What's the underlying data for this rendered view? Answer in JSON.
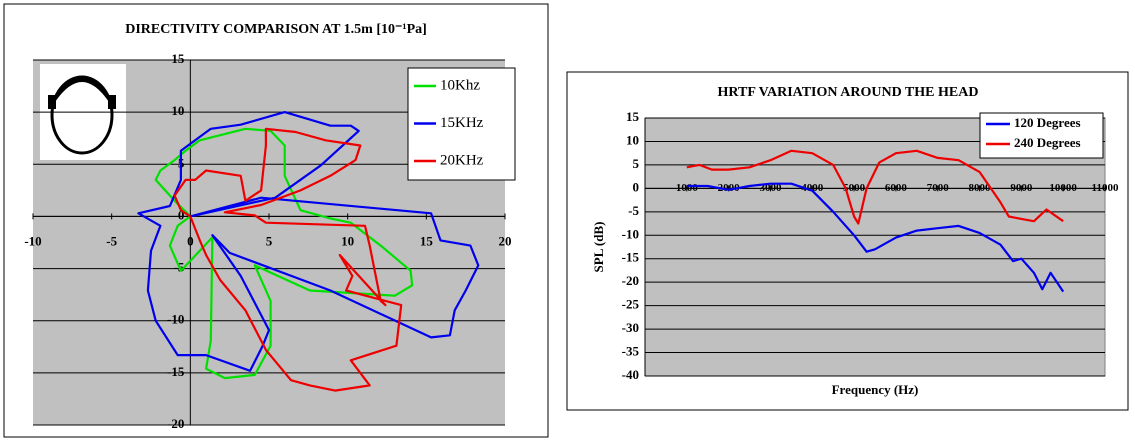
{
  "chart_data": [
    {
      "type": "line",
      "title": "DIRECTIVITY COMPARISON AT 1.5m [10⁻¹Pa]",
      "xlim": [
        -10,
        20
      ],
      "xticks": [
        -10,
        -5,
        0,
        5,
        10,
        15,
        20
      ],
      "ylim": [
        -20,
        15
      ],
      "yticks": [
        -20,
        -15,
        -10,
        -5,
        0,
        5,
        10,
        15
      ],
      "grid": true,
      "legend": "top-right",
      "series": [
        {
          "name": "10Khz",
          "color": "#00e000",
          "x": [
            0,
            -1,
            -2.2,
            -1.9,
            -1,
            -0.3,
            0.6,
            3.5,
            5.1,
            6,
            6,
            7,
            8.9,
            10.2,
            12.1,
            14,
            14.1,
            13,
            7.6,
            4.1,
            5.1,
            5.1,
            4.1,
            2.2,
            1,
            1.3,
            1.4,
            0.6,
            -0.6,
            -1.3,
            -0.8,
            0
          ],
          "values": [
            0,
            1.5,
            3.5,
            4.4,
            5.4,
            6.3,
            7.3,
            8.4,
            8.2,
            6.8,
            3.9,
            0.6,
            -0.2,
            -0.6,
            -2.8,
            -5.2,
            -6.6,
            -7.6,
            -7.1,
            -4.7,
            -8.1,
            -12.4,
            -15.2,
            -15.5,
            -14.6,
            -11.9,
            -2,
            -3.3,
            -5.2,
            -2.8,
            -0.9,
            0
          ]
        },
        {
          "name": "15KHz",
          "color": "#0000ee",
          "x": [
            0,
            4.5,
            15.3,
            15.9,
            17.8,
            18.3,
            17.5,
            16.8,
            16.5,
            15.3,
            8.9,
            2.5,
            1.4,
            3.2,
            5,
            4.6,
            3.8,
            1,
            -0.8,
            -2.2,
            -2.7,
            -2.5,
            -1.9,
            -3.3,
            -1.3,
            -0.6,
            -0.6,
            1.3,
            3.2,
            6,
            8.9,
            10.2,
            10.7,
            8.3,
            5.4,
            0
          ],
          "values": [
            0,
            1.8,
            0.3,
            -2.3,
            -2.8,
            -4.7,
            -7.1,
            -9,
            -11.4,
            -11.6,
            -7.1,
            -3.5,
            -1.8,
            -5.7,
            -10.9,
            -12.4,
            -14.8,
            -13.3,
            -13.3,
            -10,
            -7.1,
            -3.3,
            -0.9,
            0.3,
            1,
            3.5,
            6.3,
            8.4,
            8.8,
            10,
            8.7,
            8.7,
            8.2,
            4.9,
            1.8,
            0
          ]
        },
        {
          "name": "20KHz",
          "color": "#ee0000",
          "x": [
            0,
            -0.6,
            -1,
            -0.3,
            0.3,
            1,
            3.2,
            3.5,
            4.5,
            4.8,
            4.8,
            6.7,
            8.6,
            10.8,
            10.5,
            8.9,
            7,
            4.5,
            2.2,
            4.1,
            4.8,
            11.1,
            11.4,
            12.1,
            12.4,
            9.5,
            10.3,
            9.9,
            13.4,
            13.1,
            10.2,
            11.4,
            9.2,
            7.6,
            6.4,
            4.8,
            3.5,
            1.9,
            1,
            0.6,
            0
          ],
          "values": [
            0,
            0.6,
            2,
            3.5,
            3.5,
            4.4,
            3.9,
            1.5,
            2.5,
            6.8,
            8.4,
            8.1,
            7.3,
            6.8,
            5.4,
            3.9,
            2.5,
            1.1,
            0.4,
            0.1,
            -0.6,
            -0.9,
            -2.8,
            -8.1,
            -8.5,
            -3.7,
            -5.7,
            -7.1,
            -8.5,
            -12.4,
            -13.8,
            -16.2,
            -16.7,
            -16.2,
            -15.7,
            -12.8,
            -9,
            -6.1,
            -3.7,
            -2.3,
            0
          ]
        }
      ]
    },
    {
      "type": "line",
      "title": "HRTF VARIATION AROUND THE HEAD",
      "x_label": "Frequency (Hz)",
      "y_label": "SPL (dB)",
      "xlim": [
        0,
        11000
      ],
      "xticks": [
        1000,
        2000,
        3000,
        4000,
        5000,
        6000,
        7000,
        8000,
        9000,
        10000,
        11000
      ],
      "ylim": [
        -40,
        15
      ],
      "yticks": [
        -40,
        -35,
        -30,
        -25,
        -20,
        -15,
        -10,
        -5,
        0,
        5,
        10,
        15
      ],
      "grid": true,
      "legend": "top-right",
      "series": [
        {
          "name": "120 Degrees",
          "color": "#0000ee",
          "x": [
            1000,
            1500,
            2000,
            2500,
            3000,
            3500,
            4000,
            4500,
            5000,
            5300,
            5500,
            6000,
            6500,
            7000,
            7500,
            8000,
            8500,
            8800,
            9000,
            9300,
            9500,
            9700,
            10000
          ],
          "values": [
            0.5,
            0.5,
            -0.3,
            0.5,
            1,
            1,
            -0.5,
            -5,
            -10,
            -13.5,
            -13,
            -10.5,
            -9,
            -8.5,
            -8,
            -9.5,
            -12,
            -15.5,
            -15,
            -18,
            -21.5,
            -18,
            -22
          ]
        },
        {
          "name": "240 Degrees",
          "color": "#ee0000",
          "x": [
            1000,
            1300,
            1600,
            2000,
            2500,
            3000,
            3500,
            4000,
            4500,
            4800,
            5000,
            5100,
            5300,
            5600,
            6000,
            6500,
            7000,
            7500,
            8000,
            8500,
            8700,
            9000,
            9300,
            9600,
            10000
          ],
          "values": [
            4.5,
            5,
            4,
            4,
            4.5,
            6,
            8,
            7.5,
            5,
            0,
            -6,
            -7.5,
            0,
            5.5,
            7.5,
            8,
            6.5,
            6,
            3.5,
            -3,
            -6,
            -6.5,
            -7,
            -4.5,
            -7
          ]
        }
      ]
    }
  ]
}
